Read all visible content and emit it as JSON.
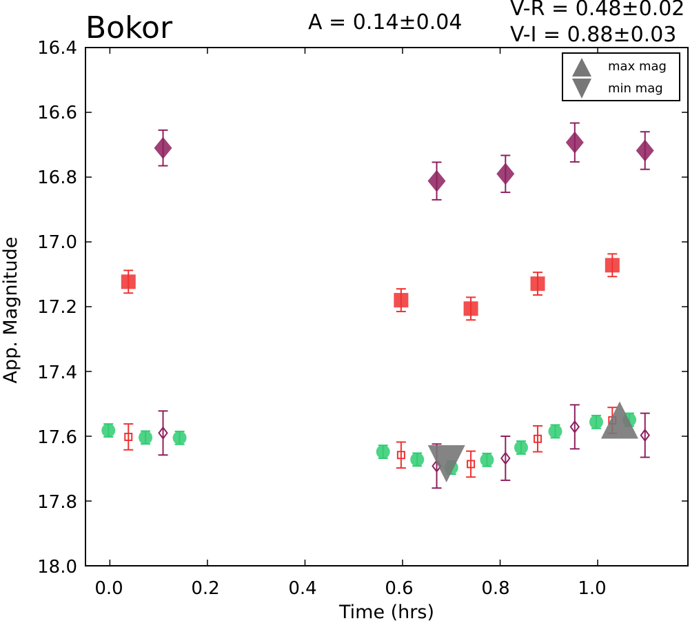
{
  "chart_data": {
    "type": "scatter",
    "title": "Bokor",
    "amplitude_text": "A  = 0.14±0.04",
    "color_indices": [
      "V-R = 0.48±0.02",
      "V-I  = 0.88±0.03"
    ],
    "xlabel": "Time (hrs)",
    "ylabel": "App. Magnitude",
    "xlim": [
      -0.05,
      1.185
    ],
    "ylim": [
      18.0,
      16.4
    ],
    "y_axis_inverted": true,
    "xticks": [
      "0.0",
      "0.2",
      "0.4",
      "0.6",
      "0.8",
      "1.0"
    ],
    "yticks": [
      "16.4",
      "16.6",
      "16.8",
      "17.0",
      "17.2",
      "17.4",
      "17.6",
      "17.8",
      "18.0"
    ],
    "grid": false,
    "legend_position": "top-right",
    "legend": [
      {
        "label": "max mag",
        "marker": "triangle-up"
      },
      {
        "label": "min mag",
        "marker": "triangle-down"
      }
    ],
    "colors": {
      "V": "#2ecc71",
      "R": "#f03030",
      "I": "#8e1f5e",
      "extrema": "#777777"
    },
    "series": [
      {
        "band": "R",
        "marker": "square-filled",
        "points": [
          {
            "x": 0.038,
            "y": 17.123,
            "err": 0.035
          },
          {
            "x": 0.597,
            "y": 17.18,
            "err": 0.035
          },
          {
            "x": 0.74,
            "y": 17.206,
            "err": 0.035
          },
          {
            "x": 0.877,
            "y": 17.129,
            "err": 0.035
          },
          {
            "x": 1.03,
            "y": 17.072,
            "err": 0.035
          }
        ]
      },
      {
        "band": "I",
        "marker": "diamond-filled",
        "points": [
          {
            "x": 0.109,
            "y": 16.71,
            "err": 0.055
          },
          {
            "x": 0.67,
            "y": 16.812,
            "err": 0.058
          },
          {
            "x": 0.811,
            "y": 16.79,
            "err": 0.057
          },
          {
            "x": 0.953,
            "y": 16.693,
            "err": 0.06
          },
          {
            "x": 1.097,
            "y": 16.718,
            "err": 0.058
          }
        ]
      },
      {
        "band": "V",
        "marker": "circle-filled",
        "points": [
          {
            "x": -0.003,
            "y": 17.582,
            "err": 0.02
          },
          {
            "x": 0.073,
            "y": 17.604,
            "err": 0.02
          },
          {
            "x": 0.143,
            "y": 17.605,
            "err": 0.02
          },
          {
            "x": 0.56,
            "y": 17.648,
            "err": 0.02
          },
          {
            "x": 0.63,
            "y": 17.672,
            "err": 0.02
          },
          {
            "x": 0.7,
            "y": 17.697,
            "err": 0.02
          },
          {
            "x": 0.773,
            "y": 17.673,
            "err": 0.02
          },
          {
            "x": 0.843,
            "y": 17.635,
            "err": 0.02
          },
          {
            "x": 0.913,
            "y": 17.585,
            "err": 0.02
          },
          {
            "x": 0.997,
            "y": 17.556,
            "err": 0.02
          },
          {
            "x": 1.065,
            "y": 17.549,
            "err": 0.02
          }
        ]
      },
      {
        "band": "R",
        "marker": "square-open",
        "points": [
          {
            "x": 0.038,
            "y": 17.602,
            "err": 0.04
          },
          {
            "x": 0.597,
            "y": 17.658,
            "err": 0.04
          },
          {
            "x": 0.74,
            "y": 17.686,
            "err": 0.04
          },
          {
            "x": 0.877,
            "y": 17.608,
            "err": 0.04
          },
          {
            "x": 1.03,
            "y": 17.551,
            "err": 0.04
          }
        ]
      },
      {
        "band": "I",
        "marker": "diamond-open",
        "points": [
          {
            "x": 0.109,
            "y": 17.59,
            "err": 0.068
          },
          {
            "x": 0.67,
            "y": 17.692,
            "err": 0.068
          },
          {
            "x": 0.811,
            "y": 17.668,
            "err": 0.068
          },
          {
            "x": 0.953,
            "y": 17.571,
            "err": 0.068
          },
          {
            "x": 1.097,
            "y": 17.597,
            "err": 0.068
          }
        ]
      }
    ],
    "extrema": [
      {
        "type": "max mag",
        "marker": "triangle-up",
        "x": 1.045,
        "y": 17.55
      },
      {
        "type": "min mag",
        "marker": "triangle-down",
        "x": 0.69,
        "y": 17.685
      }
    ]
  }
}
